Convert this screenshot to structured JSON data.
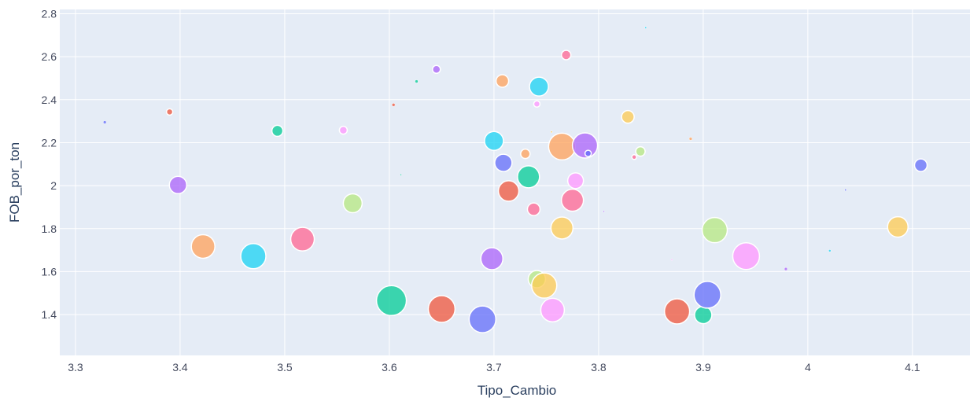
{
  "chart_data": {
    "type": "scatter",
    "xlabel": "Tipo_Cambio",
    "ylabel": "FOB_por_ton",
    "xlim": [
      3.285,
      4.155
    ],
    "ylim": [
      1.21,
      2.82
    ],
    "x_ticks": [
      3.3,
      3.4,
      3.5,
      3.6,
      3.7,
      3.8,
      3.9,
      4.0,
      4.1
    ],
    "x_tick_labels": [
      "3.3",
      "3.4",
      "3.5",
      "3.6",
      "3.7",
      "3.8",
      "3.9",
      "4",
      "4.1"
    ],
    "y_ticks": [
      1.4,
      1.6,
      1.8,
      2.0,
      2.2,
      2.4,
      2.6,
      2.8
    ],
    "y_tick_labels": [
      "1.4",
      "1.6",
      "1.8",
      "2",
      "2.2",
      "2.4",
      "2.6",
      "2.8"
    ],
    "grid": true,
    "legend": false,
    "background": "#e5ecf6",
    "grid_color": "#ffffff",
    "bubble_size_note": "marker size varies per point",
    "points": [
      {
        "x": 3.328,
        "y": 2.295,
        "size": 2,
        "color": "#636efa"
      },
      {
        "x": 3.39,
        "y": 2.343,
        "size": 4,
        "color": "#ef553b"
      },
      {
        "x": 3.398,
        "y": 2.003,
        "size": 11,
        "color": "#ab63fa"
      },
      {
        "x": 3.422,
        "y": 1.717,
        "size": 15,
        "color": "#ffa15a"
      },
      {
        "x": 3.47,
        "y": 1.672,
        "size": 16,
        "color": "#19d3f3"
      },
      {
        "x": 3.493,
        "y": 2.255,
        "size": 7,
        "color": "#00cc96"
      },
      {
        "x": 3.517,
        "y": 1.751,
        "size": 15,
        "color": "#ff6692"
      },
      {
        "x": 3.556,
        "y": 2.258,
        "size": 5,
        "color": "#ff97ff"
      },
      {
        "x": 3.565,
        "y": 1.918,
        "size": 12,
        "color": "#b6e880"
      },
      {
        "x": 3.602,
        "y": 1.465,
        "size": 19,
        "color": "#00cc96"
      },
      {
        "x": 3.604,
        "y": 2.376,
        "size": 2,
        "color": "#ef553b"
      },
      {
        "x": 3.626,
        "y": 2.485,
        "size": 2,
        "color": "#00cc96"
      },
      {
        "x": 3.645,
        "y": 2.541,
        "size": 5,
        "color": "#ab63fa"
      },
      {
        "x": 3.65,
        "y": 1.426,
        "size": 17,
        "color": "#ef553b"
      },
      {
        "x": 3.689,
        "y": 1.378,
        "size": 17,
        "color": "#636efa"
      },
      {
        "x": 3.698,
        "y": 1.66,
        "size": 14,
        "color": "#ab63fa"
      },
      {
        "x": 3.7,
        "y": 2.208,
        "size": 12,
        "color": "#19d3f3"
      },
      {
        "x": 3.708,
        "y": 2.487,
        "size": 8,
        "color": "#ffa15a"
      },
      {
        "x": 3.709,
        "y": 2.106,
        "size": 11,
        "color": "#636efa"
      },
      {
        "x": 3.714,
        "y": 1.975,
        "size": 13,
        "color": "#ef553b"
      },
      {
        "x": 3.73,
        "y": 2.148,
        "size": 6,
        "color": "#ffa15a"
      },
      {
        "x": 3.733,
        "y": 2.041,
        "size": 14,
        "color": "#00cc96"
      },
      {
        "x": 3.738,
        "y": 1.89,
        "size": 8,
        "color": "#ff6692"
      },
      {
        "x": 3.741,
        "y": 1.565,
        "size": 11,
        "color": "#b6e880"
      },
      {
        "x": 3.741,
        "y": 2.38,
        "size": 4,
        "color": "#ff97ff"
      },
      {
        "x": 3.743,
        "y": 2.461,
        "size": 12,
        "color": "#19d3f3"
      },
      {
        "x": 3.748,
        "y": 1.535,
        "size": 16,
        "color": "#fecb52"
      },
      {
        "x": 3.756,
        "y": 1.421,
        "size": 15,
        "color": "#ff97ff"
      },
      {
        "x": 3.765,
        "y": 2.182,
        "size": 17,
        "color": "#ffa15a"
      },
      {
        "x": 3.765,
        "y": 1.803,
        "size": 14,
        "color": "#fecb52"
      },
      {
        "x": 3.769,
        "y": 2.608,
        "size": 6,
        "color": "#ff6692"
      },
      {
        "x": 3.775,
        "y": 1.932,
        "size": 14,
        "color": "#ff6692"
      },
      {
        "x": 3.778,
        "y": 2.023,
        "size": 10,
        "color": "#ff97ff"
      },
      {
        "x": 3.787,
        "y": 2.187,
        "size": 16,
        "color": "#ab63fa"
      },
      {
        "x": 3.79,
        "y": 2.15,
        "size": 4,
        "color": "#636efa"
      },
      {
        "x": 3.828,
        "y": 2.32,
        "size": 8,
        "color": "#fecb52"
      },
      {
        "x": 3.834,
        "y": 2.133,
        "size": 3,
        "color": "#ff6692"
      },
      {
        "x": 3.84,
        "y": 2.159,
        "size": 6,
        "color": "#b6e880"
      },
      {
        "x": 3.875,
        "y": 1.415,
        "size": 16,
        "color": "#ef553b"
      },
      {
        "x": 3.888,
        "y": 2.218,
        "size": 2,
        "color": "#ffa15a"
      },
      {
        "x": 3.9,
        "y": 1.398,
        "size": 11,
        "color": "#00cc96"
      },
      {
        "x": 3.904,
        "y": 1.492,
        "size": 17,
        "color": "#636efa"
      },
      {
        "x": 3.911,
        "y": 1.793,
        "size": 16,
        "color": "#b6e880"
      },
      {
        "x": 3.941,
        "y": 1.672,
        "size": 17,
        "color": "#ff97ff"
      },
      {
        "x": 3.979,
        "y": 1.612,
        "size": 2,
        "color": "#ab63fa"
      },
      {
        "x": 4.021,
        "y": 1.697,
        "size": 1.5,
        "color": "#19d3f3"
      },
      {
        "x": 4.036,
        "y": 1.98,
        "size": 1.2,
        "color": "#636efa"
      },
      {
        "x": 4.086,
        "y": 1.808,
        "size": 13,
        "color": "#fecb52"
      },
      {
        "x": 4.108,
        "y": 2.095,
        "size": 8,
        "color": "#636efa"
      },
      {
        "x": 3.611,
        "y": 2.05,
        "size": 1,
        "color": "#00cc96"
      },
      {
        "x": 3.805,
        "y": 1.88,
        "size": 1,
        "color": "#ab63fa"
      },
      {
        "x": 3.845,
        "y": 2.735,
        "size": 1.2,
        "color": "#19d3f3"
      },
      {
        "x": 3.755,
        "y": 2.25,
        "size": 1.2,
        "color": "#fecb52"
      },
      {
        "x": 3.87,
        "y": 1.655,
        "size": 1,
        "color": "#ff97ff"
      }
    ]
  }
}
